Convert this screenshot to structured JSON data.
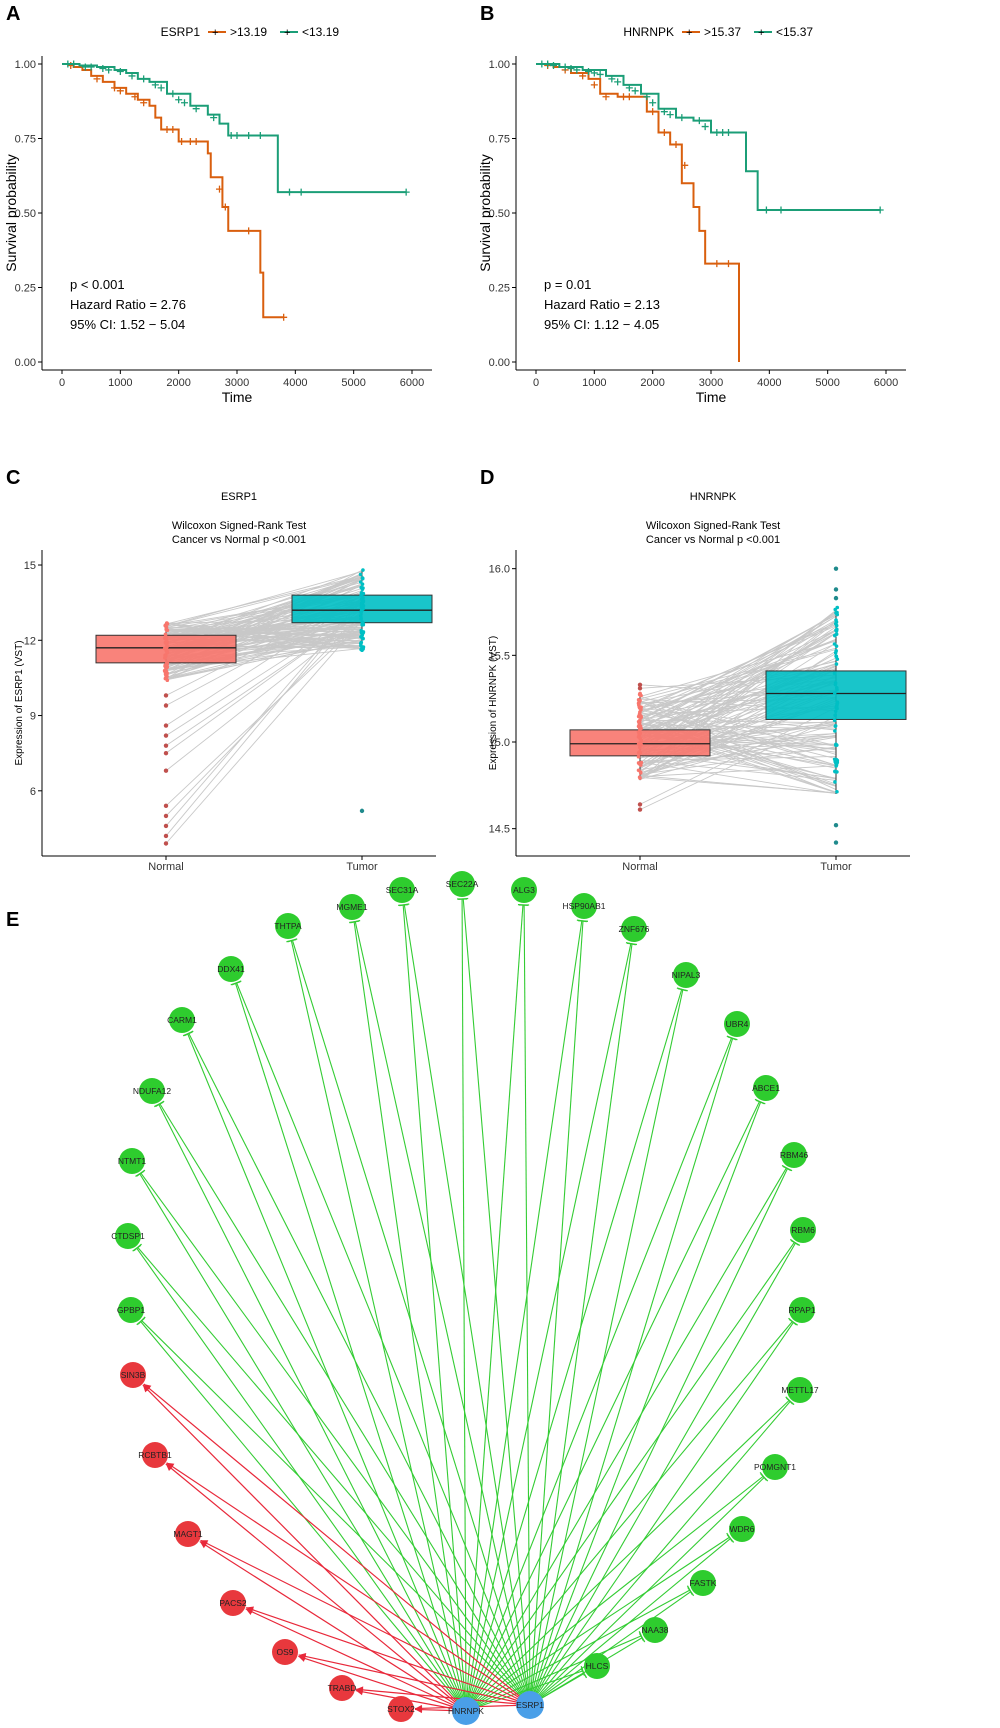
{
  "panel_labels": [
    "A",
    "B",
    "C",
    "D",
    "E"
  ],
  "colors": {
    "high": "#D95F0E",
    "low": "#1B9E77",
    "normal_box": "#F8766D",
    "tumor_box": "#00BFC4",
    "node_green": "#2ECC2E",
    "node_red": "#E8383D",
    "node_blue": "#4A9FE8",
    "edge_green": "#33CC33",
    "edge_red": "#E8283A"
  },
  "chart_data": [
    {
      "type": "line",
      "panel": "A",
      "legend_title": "ESRP1",
      "xlabel": "Time",
      "ylabel": "Survival probability",
      "xlim": [
        0,
        6000
      ],
      "ylim": [
        0,
        1
      ],
      "xticks": [
        "0",
        "1000",
        "2000",
        "3000",
        "4000",
        "5000",
        "6000"
      ],
      "yticks": [
        "0.00",
        "0.25",
        "0.50",
        "0.75",
        "1.00"
      ],
      "annotations": [
        "p < 0.001",
        "Hazard Ratio = 2.76",
        "95% CI: 1.52 − 5.04"
      ],
      "series": [
        {
          "name": ">13.19",
          "color": "#D95F0E",
          "x": [
            0,
            200,
            350,
            500,
            700,
            900,
            1100,
            1300,
            1500,
            1600,
            1700,
            2000,
            2200,
            2400,
            2500,
            2550,
            2750,
            2850,
            3400,
            3450,
            3800
          ],
          "y": [
            1.0,
            0.99,
            0.98,
            0.96,
            0.94,
            0.92,
            0.9,
            0.88,
            0.86,
            0.82,
            0.78,
            0.74,
            0.74,
            0.74,
            0.7,
            0.62,
            0.52,
            0.44,
            0.3,
            0.15,
            0.15
          ],
          "censor": [
            [
              150,
              0.995
            ],
            [
              600,
              0.95
            ],
            [
              900,
              0.92
            ],
            [
              1000,
              0.91
            ],
            [
              1250,
              0.89
            ],
            [
              1400,
              0.87
            ],
            [
              1800,
              0.78
            ],
            [
              1900,
              0.78
            ],
            [
              2050,
              0.74
            ],
            [
              2200,
              0.74
            ],
            [
              2300,
              0.74
            ],
            [
              2700,
              0.58
            ],
            [
              2800,
              0.52
            ],
            [
              3200,
              0.44
            ],
            [
              3800,
              0.15
            ]
          ]
        },
        {
          "name": "<13.19",
          "color": "#1B9E77",
          "x": [
            0,
            300,
            600,
            900,
            1100,
            1300,
            1500,
            1800,
            2200,
            2500,
            2700,
            2850,
            3600,
            3700,
            5900
          ],
          "y": [
            1.0,
            0.995,
            0.99,
            0.98,
            0.97,
            0.95,
            0.94,
            0.9,
            0.86,
            0.83,
            0.8,
            0.76,
            0.76,
            0.57,
            0.57
          ],
          "censor": [
            [
              100,
              1.0
            ],
            [
              200,
              1.0
            ],
            [
              400,
              0.99
            ],
            [
              500,
              0.99
            ],
            [
              700,
              0.985
            ],
            [
              800,
              0.98
            ],
            [
              1000,
              0.975
            ],
            [
              1200,
              0.96
            ],
            [
              1400,
              0.95
            ],
            [
              1600,
              0.93
            ],
            [
              1700,
              0.92
            ],
            [
              1900,
              0.9
            ],
            [
              2000,
              0.88
            ],
            [
              2100,
              0.87
            ],
            [
              2300,
              0.85
            ],
            [
              2600,
              0.82
            ],
            [
              2900,
              0.76
            ],
            [
              3000,
              0.76
            ],
            [
              3200,
              0.76
            ],
            [
              3400,
              0.76
            ],
            [
              3900,
              0.57
            ],
            [
              4100,
              0.57
            ],
            [
              5900,
              0.57
            ]
          ]
        }
      ]
    },
    {
      "type": "line",
      "panel": "B",
      "legend_title": "HNRNPK",
      "xlabel": "Time",
      "ylabel": "Survival probability",
      "xlim": [
        0,
        6000
      ],
      "ylim": [
        0,
        1
      ],
      "xticks": [
        "0",
        "1000",
        "2000",
        "3000",
        "4000",
        "5000",
        "6000"
      ],
      "yticks": [
        "0.00",
        "0.25",
        "0.50",
        "0.75",
        "1.00"
      ],
      "annotations": [
        "p = 0.01",
        "Hazard Ratio = 2.13",
        "95% CI: 1.12 − 4.05"
      ],
      "series": [
        {
          "name": ">15.37",
          "color": "#D95F0E",
          "x": [
            0,
            300,
            600,
            900,
            1100,
            1400,
            1700,
            1900,
            2100,
            2300,
            2500,
            2700,
            2800,
            2900,
            3450,
            3480
          ],
          "y": [
            1.0,
            0.99,
            0.97,
            0.95,
            0.9,
            0.89,
            0.89,
            0.84,
            0.77,
            0.73,
            0.6,
            0.52,
            0.44,
            0.33,
            0.33,
            0.0
          ],
          "censor": [
            [
              200,
              0.995
            ],
            [
              500,
              0.98
            ],
            [
              800,
              0.96
            ],
            [
              1000,
              0.93
            ],
            [
              1200,
              0.89
            ],
            [
              1500,
              0.89
            ],
            [
              1600,
              0.89
            ],
            [
              2000,
              0.84
            ],
            [
              2200,
              0.77
            ],
            [
              2400,
              0.73
            ],
            [
              2550,
              0.66
            ],
            [
              3100,
              0.33
            ],
            [
              3300,
              0.33
            ]
          ]
        },
        {
          "name": "<15.37",
          "color": "#1B9E77",
          "x": [
            0,
            400,
            800,
            1200,
            1500,
            1800,
            2100,
            2400,
            2700,
            3000,
            3450,
            3600,
            3800,
            5900
          ],
          "y": [
            1.0,
            0.99,
            0.98,
            0.96,
            0.93,
            0.9,
            0.85,
            0.82,
            0.81,
            0.77,
            0.77,
            0.64,
            0.51,
            0.51
          ],
          "censor": [
            [
              100,
              1.0
            ],
            [
              200,
              1.0
            ],
            [
              300,
              0.995
            ],
            [
              500,
              0.99
            ],
            [
              600,
              0.985
            ],
            [
              700,
              0.98
            ],
            [
              900,
              0.975
            ],
            [
              1000,
              0.97
            ],
            [
              1100,
              0.965
            ],
            [
              1300,
              0.95
            ],
            [
              1400,
              0.94
            ],
            [
              1600,
              0.92
            ],
            [
              1700,
              0.91
            ],
            [
              1900,
              0.89
            ],
            [
              2000,
              0.87
            ],
            [
              2200,
              0.84
            ],
            [
              2300,
              0.83
            ],
            [
              2500,
              0.82
            ],
            [
              2800,
              0.81
            ],
            [
              2900,
              0.79
            ],
            [
              3100,
              0.77
            ],
            [
              3200,
              0.77
            ],
            [
              3300,
              0.77
            ],
            [
              3950,
              0.51
            ],
            [
              4200,
              0.51
            ],
            [
              5900,
              0.51
            ]
          ]
        }
      ]
    },
    {
      "type": "box",
      "panel": "C",
      "title": "ESRP1",
      "subtitle_1": "Wilcoxon Signed-Rank Test",
      "subtitle_2": "Cancer vs Normal p  <0.001",
      "ylabel": "Expression of  ESRP1  (VST)",
      "categories": [
        "Normal",
        "Tumor"
      ],
      "ylim": [
        3.8,
        15.2
      ],
      "yticks": [
        6,
        9,
        12,
        15
      ],
      "boxes": [
        {
          "category": "Normal",
          "q1": 11.1,
          "median": 11.7,
          "q3": 12.2,
          "low": 10.4,
          "high": 12.7
        },
        {
          "category": "Tumor",
          "q1": 12.7,
          "median": 13.2,
          "q3": 13.8,
          "low": 11.6,
          "high": 14.8
        }
      ],
      "outliers": [
        {
          "category": "Normal",
          "values": [
            8.6,
            8.2,
            7.8,
            7.5,
            6.8,
            5.4,
            5.0,
            4.6,
            4.2,
            3.9,
            9.4,
            9.8
          ]
        },
        {
          "category": "Tumor",
          "values": [
            5.2
          ]
        }
      ]
    },
    {
      "type": "box",
      "panel": "D",
      "title": "HNRNPK",
      "subtitle_1": "Wilcoxon Signed-Rank Test",
      "subtitle_2": "Cancer vs Normal p  <0.001",
      "ylabel": "Expression of  HNRNPK  (VST)",
      "categories": [
        "Normal",
        "Tumor"
      ],
      "ylim": [
        14.4,
        16.05
      ],
      "yticks": [
        "14.5",
        "15.0",
        "15.5",
        "16.0"
      ],
      "boxes": [
        {
          "category": "Normal",
          "q1": 14.92,
          "median": 14.99,
          "q3": 15.07,
          "low": 14.78,
          "high": 15.28
        },
        {
          "category": "Tumor",
          "q1": 15.13,
          "median": 15.28,
          "q3": 15.41,
          "low": 14.7,
          "high": 15.78
        }
      ],
      "outliers": [
        {
          "category": "Normal",
          "values": [
            14.61,
            14.64,
            15.31,
            15.33
          ]
        },
        {
          "category": "Tumor",
          "values": [
            16.0,
            15.88,
            15.83,
            14.52,
            14.42
          ]
        }
      ]
    },
    {
      "type": "network",
      "panel": "E",
      "hubs": [
        "HNRNPK",
        "ESRP1"
      ],
      "green_nodes": [
        "MGME1",
        "SEC31A",
        "SEC22A",
        "ALG3",
        "HSP90AB1",
        "THTPA",
        "ZNF676",
        "DDX41",
        "NIPAL3",
        "CARM1",
        "UBR4",
        "NDUFA12",
        "ABCE1",
        "NTMT1",
        "RBM46",
        "CTDSP1",
        "RBM6",
        "GPBP1",
        "RPAP1",
        "METTL17",
        "POMGNT1",
        "WDR6",
        "FASTK",
        "NAA38",
        "HLCS"
      ],
      "red_nodes": [
        "SIN3B",
        "RCBTB1",
        "MAGT1",
        "PACS2",
        "OS9",
        "TRABD",
        "STOX2"
      ]
    }
  ]
}
